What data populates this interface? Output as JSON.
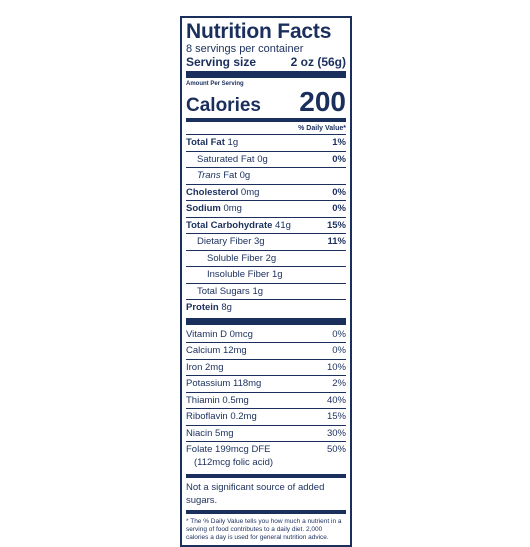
{
  "label": {
    "title": "Nutrition Facts",
    "servings_per_container": "8 servings per container",
    "serving_size_label": "Serving size",
    "serving_size_value": "2 oz (56g)",
    "amount_per_serving": "Amount Per Serving",
    "calories_label": "Calories",
    "calories_value": "200",
    "daily_value_header": "% Daily Value*"
  },
  "nutrients": {
    "total_fat": {
      "label": "Total Fat",
      "amount": "1g",
      "dv": "1%"
    },
    "saturated_fat": {
      "label": "Saturated Fat",
      "amount": "0g",
      "dv": "0%"
    },
    "trans_fat": {
      "label_italic": "Trans",
      "label": "Fat",
      "amount": "0g"
    },
    "cholesterol": {
      "label": "Cholesterol",
      "amount": "0mg",
      "dv": "0%"
    },
    "sodium": {
      "label": "Sodium",
      "amount": "0mg",
      "dv": "0%"
    },
    "total_carb": {
      "label": "Total Carbohydrate",
      "amount": "41g",
      "dv": "15%"
    },
    "dietary_fiber": {
      "label": "Dietary Fiber",
      "amount": "3g",
      "dv": "11%"
    },
    "soluble_fiber": {
      "label": "Soluble Fiber",
      "amount": "2g"
    },
    "insoluble_fiber": {
      "label": "Insoluble Fiber",
      "amount": "1g"
    },
    "total_sugars": {
      "label": "Total Sugars",
      "amount": "1g"
    },
    "protein": {
      "label": "Protein",
      "amount": "8g"
    }
  },
  "vitamins": {
    "vitamin_d": {
      "label": "Vitamin D 0mcg",
      "dv": "0%"
    },
    "calcium": {
      "label": "Calcium 12mg",
      "dv": "0%"
    },
    "iron": {
      "label": "Iron 2mg",
      "dv": "10%"
    },
    "potassium": {
      "label": "Potassium 118mg",
      "dv": "2%"
    },
    "thiamin": {
      "label": "Thiamin 0.5mg",
      "dv": "40%"
    },
    "riboflavin": {
      "label": "Riboflavin 0.2mg",
      "dv": "15%"
    },
    "niacin": {
      "label": "Niacin 5mg",
      "dv": "30%"
    },
    "folate": {
      "label": "Folate 199mcg DFE",
      "sub": "(112mcg folic acid)",
      "dv": "50%"
    }
  },
  "notes": {
    "added_sugars": "Not a significant source of added sugars.",
    "footnote": "* The % Daily Value tells you how much a nutrient in a serving of food contributes to a daily diet. 2,000 calories a day is used for general nutrition advice."
  },
  "colors": {
    "ink": "#1b2f5c",
    "background": "#ffffff"
  }
}
